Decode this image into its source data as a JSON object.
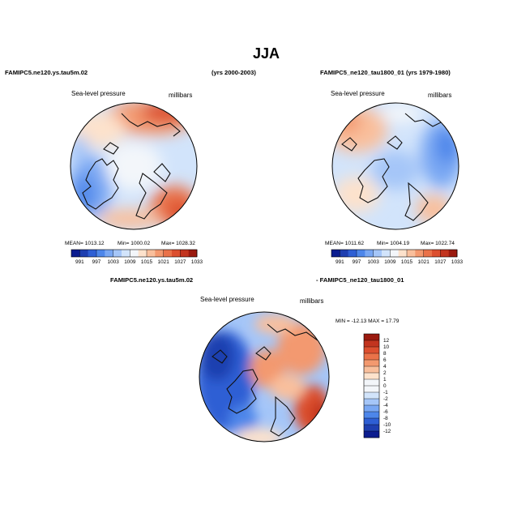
{
  "page": {
    "title": "JJA"
  },
  "panels": [
    {
      "case_label": "FAMIPC5.ne120.ys.tau5m.02",
      "years": "(yrs 2000-2003)",
      "var_label": "Sea-level pressure",
      "units": "millibars",
      "stats": {
        "mean": "MEAN= 1013.12",
        "min": "Min= 1000.02",
        "max": "Max= 1028.32"
      }
    },
    {
      "case_label": "FAMIPC5_ne120_tau1800_01 (yrs 1979-1980)",
      "var_label": "Sea-level pressure",
      "units": "millibars",
      "stats": {
        "mean": "MEAN= 1011.62",
        "min": "Min= 1004.19",
        "max": "Max= 1022.74"
      }
    },
    {
      "left_label": "FAMIPC5.ne120.ys.tau5m.02",
      "right_label": "- FAMIPC5_ne120_tau1800_01",
      "var_label": "Sea-level pressure",
      "units": "millibars",
      "minmax": "MIN = -12.13 MAX =  17.79"
    }
  ],
  "chart_data": [
    {
      "type": "heatmap",
      "projection": "north polar stereographic",
      "title": "FAMIPC5.ne120.ys.tau5m.02 (yrs 2000-2003)",
      "variable": "Sea-level pressure",
      "units": "millibars",
      "mean": 1013.12,
      "min": 1000.02,
      "max": 1028.32,
      "colorbar": {
        "orientation": "horizontal",
        "ticks": [
          "991",
          "997",
          "1003",
          "1009",
          "1015",
          "1021",
          "1027",
          "1033"
        ],
        "levels": [
          988,
          991,
          994,
          997,
          1000,
          1003,
          1006,
          1009,
          1012,
          1015,
          1018,
          1021,
          1024,
          1027,
          1030,
          1033
        ]
      }
    },
    {
      "type": "heatmap",
      "projection": "north polar stereographic",
      "title": "FAMIPC5_ne120_tau1800_01 (yrs 1979-1980)",
      "variable": "Sea-level pressure",
      "units": "millibars",
      "mean": 1011.62,
      "min": 1004.19,
      "max": 1022.74,
      "colorbar": {
        "orientation": "horizontal",
        "ticks": [
          "991",
          "997",
          "1003",
          "1009",
          "1015",
          "1021",
          "1027",
          "1033"
        ],
        "levels": [
          988,
          991,
          994,
          997,
          1000,
          1003,
          1006,
          1009,
          1012,
          1015,
          1018,
          1021,
          1024,
          1027,
          1030,
          1033
        ]
      }
    },
    {
      "type": "heatmap",
      "projection": "north polar stereographic",
      "title": "FAMIPC5.ne120.ys.tau5m.02 - FAMIPC5_ne120_tau1800_01",
      "variable": "Sea-level pressure",
      "units": "millibars",
      "min": -12.13,
      "max": 17.79,
      "colorbar": {
        "orientation": "vertical",
        "ticks": [
          "12",
          "10",
          "8",
          "6",
          "4",
          "2",
          "1",
          "0",
          "-1",
          "-2",
          "-4",
          "-6",
          "-8",
          "-10",
          "-12"
        ],
        "levels": [
          14,
          12,
          10,
          8,
          6,
          4,
          2,
          1,
          0,
          -1,
          -2,
          -4,
          -6,
          -8,
          -10,
          -12,
          -14
        ]
      }
    }
  ],
  "colors": {
    "scale": [
      "#0b1c8f",
      "#1e3fb0",
      "#2e5fd4",
      "#4d86ea",
      "#79a7f3",
      "#a5c6f8",
      "#d2e4fb",
      "#f3f6fa",
      "#fde2cc",
      "#f9bf9c",
      "#f3996f",
      "#ea7249",
      "#dc4f2f",
      "#c2341f",
      "#9b1a0f"
    ],
    "coast": "#111111"
  }
}
